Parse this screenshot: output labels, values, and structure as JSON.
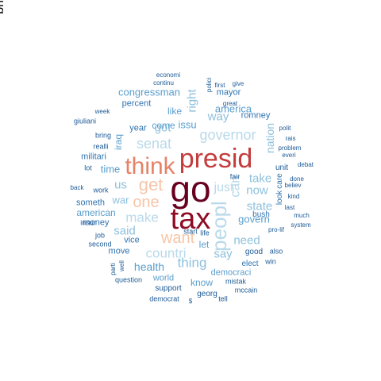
{
  "cloud": {
    "words": [
      {
        "text": "go",
        "color": "#67001f"
      },
      {
        "text": "tax",
        "color": "#8e0c25"
      },
      {
        "text": "presid",
        "color": "#c43c3c"
      },
      {
        "text": "think",
        "color": "#e58267"
      },
      {
        "text": "get",
        "color": "#f7c5a8"
      },
      {
        "text": "one",
        "color": "#f7c5a8"
      },
      {
        "text": "want",
        "color": "#f7c5a8"
      },
      {
        "text": "peopl",
        "color": "#b9d9ea"
      },
      {
        "text": "governor",
        "color": "#b9d9ea"
      },
      {
        "text": "senat",
        "color": "#b9d9ea"
      },
      {
        "text": "make",
        "color": "#b9d9ea"
      },
      {
        "text": "countri",
        "color": "#b9d9ea"
      },
      {
        "text": "can",
        "color": "#b9d9ea"
      },
      {
        "text": "just",
        "color": "#b9d9ea"
      },
      {
        "text": "thing",
        "color": "#8dc0dd"
      },
      {
        "text": "said",
        "color": "#8dc0dd"
      },
      {
        "text": "now",
        "color": "#8dc0dd"
      },
      {
        "text": "take",
        "color": "#8dc0dd"
      },
      {
        "text": "state",
        "color": "#8dc0dd"
      },
      {
        "text": "say",
        "color": "#8dc0dd"
      },
      {
        "text": "need",
        "color": "#8dc0dd"
      },
      {
        "text": "way",
        "color": "#8dc0dd"
      },
      {
        "text": "got",
        "color": "#8dc0dd"
      },
      {
        "text": "us",
        "color": "#8dc0dd"
      },
      {
        "text": "right",
        "color": "#8dc0dd"
      },
      {
        "text": "nation",
        "color": "#8dc0dd"
      },
      {
        "text": "war",
        "color": "#8dc0dd"
      },
      {
        "text": "america",
        "color": "#5a9ecc"
      },
      {
        "text": "govern",
        "color": "#5a9ecc"
      },
      {
        "text": "health",
        "color": "#5a9ecc"
      },
      {
        "text": "issu",
        "color": "#5a9ecc"
      },
      {
        "text": "time",
        "color": "#5a9ecc"
      },
      {
        "text": "like",
        "color": "#5a9ecc"
      },
      {
        "text": "come",
        "color": "#5a9ecc"
      },
      {
        "text": "congressman",
        "color": "#5a9ecc"
      },
      {
        "text": "american",
        "color": "#5a9ecc"
      },
      {
        "text": "iraq",
        "color": "#5a9ecc"
      },
      {
        "text": "let",
        "color": "#5a9ecc"
      },
      {
        "text": "know",
        "color": "#5a9ecc"
      },
      {
        "text": "world",
        "color": "#5a9ecc"
      },
      {
        "text": "democraci",
        "color": "#5a9ecc"
      },
      {
        "text": "militari",
        "color": "#2e73b0"
      },
      {
        "text": "year",
        "color": "#2e73b0"
      },
      {
        "text": "money",
        "color": "#2e73b0"
      },
      {
        "text": "mayor",
        "color": "#2e73b0"
      },
      {
        "text": "romney",
        "color": "#2e73b0"
      },
      {
        "text": "vice",
        "color": "#2e73b0"
      },
      {
        "text": "move",
        "color": "#2e73b0"
      },
      {
        "text": "percent",
        "color": "#2e73b0"
      },
      {
        "text": "someth",
        "color": "#2e73b0"
      },
      {
        "text": "bush",
        "color": "#2e73b0"
      },
      {
        "text": "elect",
        "color": "#2e73b0"
      },
      {
        "text": "look",
        "color": "#2e73b0"
      },
      {
        "text": "care",
        "color": "#2e73b0"
      },
      {
        "text": "fair",
        "color": "#1d5a96"
      },
      {
        "text": "unit",
        "color": "#1d5a96"
      },
      {
        "text": "good",
        "color": "#1d5a96"
      },
      {
        "text": "life",
        "color": "#1d5a96"
      },
      {
        "text": "support",
        "color": "#1d5a96"
      },
      {
        "text": "georg",
        "color": "#1d5a96"
      },
      {
        "text": "mistak",
        "color": "#1d5a96"
      },
      {
        "text": "win",
        "color": "#1d5a96"
      },
      {
        "text": "also",
        "color": "#1d5a96"
      },
      {
        "text": "mccain",
        "color": "#1d5a96"
      },
      {
        "text": "question",
        "color": "#1d5a96"
      },
      {
        "text": "democrat",
        "color": "#1d5a96"
      },
      {
        "text": "tell",
        "color": "#1d5a96"
      },
      {
        "text": "bring",
        "color": "#1d5a96"
      },
      {
        "text": "job",
        "color": "#1d5a96"
      },
      {
        "text": "work",
        "color": "#1d5a96"
      },
      {
        "text": "lot",
        "color": "#1d5a96"
      },
      {
        "text": "realli",
        "color": "#1d5a96"
      },
      {
        "text": "insur",
        "color": "#1d5a96"
      },
      {
        "text": "second",
        "color": "#1d5a96"
      },
      {
        "text": "parti",
        "color": "#1d5a96"
      },
      {
        "text": "well",
        "color": "#1d5a96"
      },
      {
        "text": "giuliani",
        "color": "#1d5a96"
      },
      {
        "text": "week",
        "color": "#1d5a96"
      },
      {
        "text": "continu",
        "color": "#1d5a96"
      },
      {
        "text": "economi",
        "color": "#1d5a96"
      },
      {
        "text": "polici",
        "color": "#1d5a96"
      },
      {
        "text": "first",
        "color": "#1d5a96"
      },
      {
        "text": "give",
        "color": "#1d5a96"
      },
      {
        "text": "great",
        "color": "#1d5a96"
      },
      {
        "text": "polit",
        "color": "#1d5a96"
      },
      {
        "text": "rais",
        "color": "#1d5a96"
      },
      {
        "text": "problem",
        "color": "#1d5a96"
      },
      {
        "text": "debat",
        "color": "#1d5a96"
      },
      {
        "text": "done",
        "color": "#1d5a96"
      },
      {
        "text": "believ",
        "color": "#1d5a96"
      },
      {
        "text": "kind",
        "color": "#1d5a96"
      },
      {
        "text": "last",
        "color": "#1d5a96"
      },
      {
        "text": "much",
        "color": "#1d5a96"
      },
      {
        "text": "system",
        "color": "#1d5a96"
      },
      {
        "text": "pro-lif",
        "color": "#1d5a96"
      },
      {
        "text": "everi",
        "color": "#1d5a96"
      },
      {
        "text": "back",
        "color": "#1d5a96"
      },
      {
        "text": "start",
        "color": "#1d5a96"
      },
      {
        "text": "$",
        "color": "#1d5a96"
      },
      {
        "text": "bring",
        "color": "#1d5a96"
      }
    ]
  }
}
